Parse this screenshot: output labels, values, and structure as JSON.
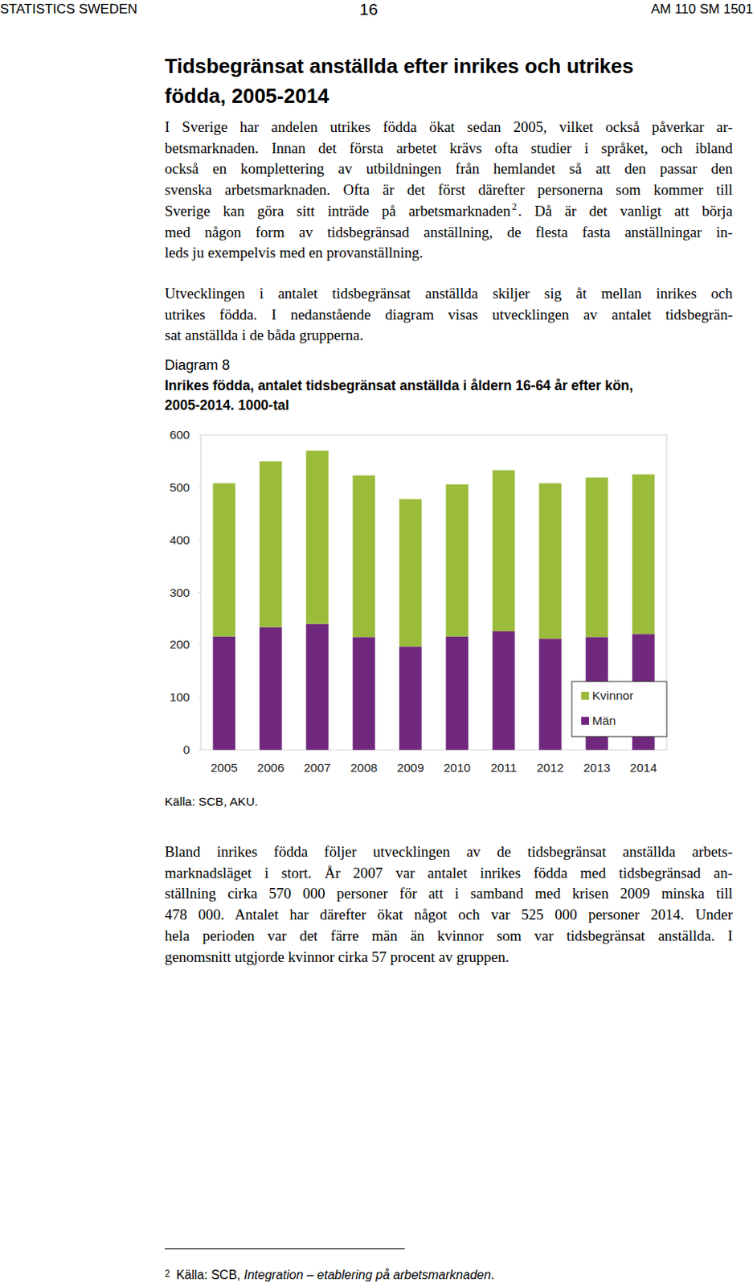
{
  "header": {
    "left": "STATISTICS SWEDEN",
    "page": "16",
    "right": "AM 110 SM 1501"
  },
  "title": [
    "Tidsbegränsat anställda efter inrikes och utrikes",
    "födda, 2005-2014"
  ],
  "paragraphs_before": [
    [
      "I Sverige har andelen utrikes födda ökat sedan 2005, vilket också påverkar ar-",
      "betsmarknaden. Innan det första arbetet krävs ofta studier i språket, och ibland",
      "också en komplettering av utbildningen från hemlandet så att den passar den",
      "svenska arbetsmarknaden. Ofta är det först därefter personerna som kommer till",
      {
        "before": "Sverige kan göra sitt inträde på arbetsmarknaden",
        "sup": "2",
        "after": ". Då är det vanligt att börja"
      },
      "med någon form av tidsbegränsad anställning, de flesta fasta anställningar in-",
      "leds ju exempelvis med en provanställning."
    ],
    [
      "Utvecklingen i antalet tidsbegränsat anställda skiljer sig åt mellan inrikes och",
      "utrikes födda. I nedanstående diagram visas utvecklingen av antalet tidsbegrän-",
      "sat anställda i de båda grupperna."
    ]
  ],
  "diagram": {
    "label": "Diagram 8",
    "title": [
      "Inrikes födda, antalet tidsbegränsat anställda i åldern 16-64 år efter kön,",
      "2005-2014. 1000-tal"
    ],
    "source": "Källa: SCB, AKU."
  },
  "chart_data": {
    "type": "bar",
    "stacked": true,
    "categories": [
      "2005",
      "2006",
      "2007",
      "2008",
      "2009",
      "2010",
      "2011",
      "2012",
      "2013",
      "2014"
    ],
    "series": [
      {
        "name": "Män",
        "color": "#70287d",
        "values": [
          216,
          234,
          240,
          215,
          197,
          216,
          226,
          212,
          215,
          221
        ]
      },
      {
        "name": "Kvinnor",
        "color": "#9bbb3b",
        "values": [
          292,
          316,
          330,
          308,
          281,
          290,
          307,
          296,
          304,
          304
        ]
      }
    ],
    "ylim": [
      0,
      600
    ],
    "yticks": [
      0,
      100,
      200,
      300,
      400,
      500,
      600
    ],
    "grid": false,
    "legend": "bottom-right"
  },
  "paragraphs_after": [
    [
      "Bland inrikes födda följer utvecklingen av de tidsbegränsat anställda arbets-",
      "marknadsläget i stort. År 2007 var antalet inrikes födda med tidsbegränsad an-",
      "ställning cirka 570 000 personer för att i samband med krisen 2009 minska till",
      "478 000. Antalet har därefter ökat något och var 525 000 personer 2014. Under",
      "hela perioden var det färre män än kvinnor som var tidsbegränsat anställda. I",
      "genomsnitt utgjorde kvinnor cirka 57 procent av gruppen."
    ]
  ],
  "footnote": {
    "marker": "2",
    "text": "Källa: SCB, ",
    "italic": "Integration – etablering på arbetsmarknaden",
    "end": "."
  }
}
